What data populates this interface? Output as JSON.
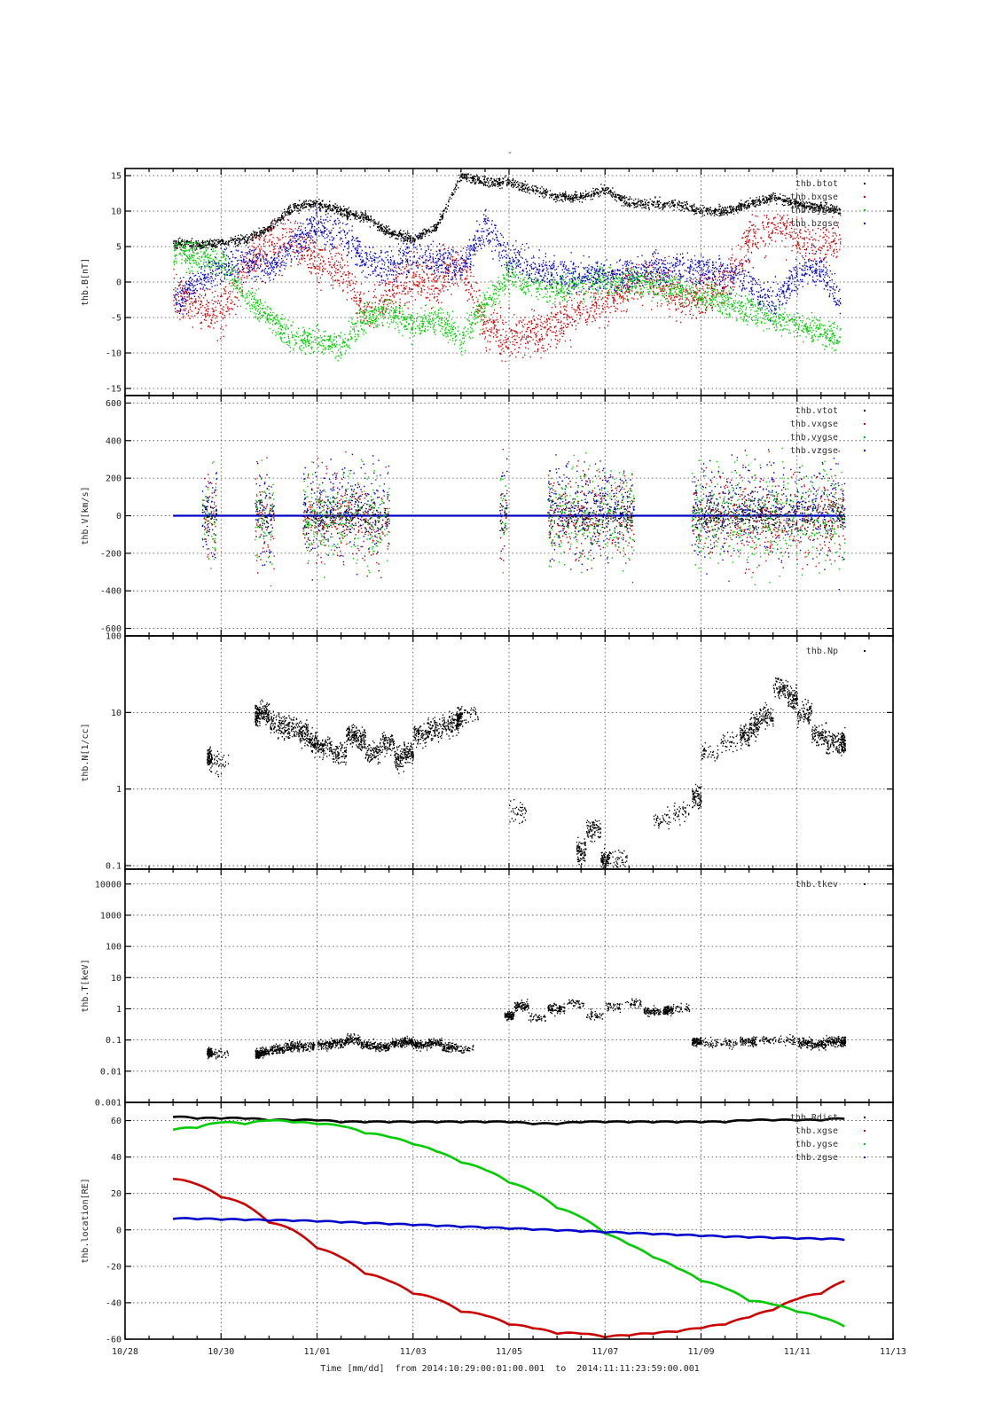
{
  "figure": {
    "title": "-",
    "x_axis": {
      "label": "Time [mm/dd]",
      "from_label": "from",
      "from": "2014:10:29:00:01:00.001",
      "to_label": "to",
      "to": "2014:11:11:23:59:00.001",
      "range": [
        "2014-10-28",
        "2014-11-13"
      ],
      "tick_labels": [
        "10/28",
        "10/30",
        "11/01",
        "11/03",
        "11/05",
        "11/07",
        "11/09",
        "11/11",
        "11/13"
      ],
      "tick_days": [
        0,
        2,
        4,
        6,
        8,
        10,
        12,
        14,
        16
      ],
      "data_start_day": 1.0,
      "data_end_day": 14.99
    },
    "grid": true,
    "colors": {
      "black": "#000000",
      "red": "#cc0000",
      "green": "#00cc00",
      "blue": "#0000cc"
    }
  },
  "chart_data": [
    {
      "type": "scatter",
      "ylabel": "thb.B[nT]",
      "ylim": [
        -16,
        16
      ],
      "yticks": [
        -15,
        -10,
        -5,
        0,
        5,
        10,
        15
      ],
      "ytick_labels": [
        "-15",
        "-10",
        "-5",
        "0",
        "5",
        "10",
        "15"
      ],
      "legend": [
        "thb.btot",
        "thb.bxgse",
        "thb.bygse",
        "thb.bzgse"
      ],
      "legend_placement": "top-right",
      "series": [
        {
          "name": "thb.btot",
          "color": "black",
          "x": [
            1.0,
            1.5,
            2.0,
            2.5,
            3.0,
            3.5,
            4.0,
            4.5,
            5.0,
            5.5,
            6.0,
            6.5,
            7.0,
            7.5,
            8.0,
            8.5,
            9.0,
            9.5,
            10.0,
            10.5,
            11.0,
            11.5,
            12.0,
            12.5,
            13.0,
            13.5,
            14.0,
            14.5,
            14.9
          ],
          "y": [
            5.5,
            5.2,
            5.5,
            6,
            7.5,
            10.5,
            11,
            10,
            9,
            7,
            6,
            8,
            15,
            14,
            14,
            13,
            12,
            12,
            13,
            11,
            11,
            11,
            10,
            10,
            11,
            12,
            11,
            10.5,
            10
          ],
          "spread": 1.2
        },
        {
          "name": "thb.bxgse",
          "color": "red",
          "x": [
            1.0,
            1.5,
            2.0,
            2.5,
            3.0,
            3.5,
            4.0,
            4.5,
            5.0,
            5.5,
            6.0,
            6.5,
            7.0,
            7.5,
            8.0,
            8.5,
            9.0,
            9.5,
            10.0,
            10.5,
            11.0,
            11.5,
            12.0,
            12.5,
            13.0,
            13.5,
            14.0,
            14.5,
            14.9
          ],
          "y": [
            -1,
            -3.5,
            -4.5,
            2,
            5,
            6,
            3,
            2,
            -4,
            -2,
            1,
            0,
            3,
            -6,
            -8,
            -7,
            -6,
            -4,
            -3,
            0,
            0,
            -2,
            -2,
            0,
            6,
            8,
            6,
            5,
            6
          ],
          "spread": 5.5
        },
        {
          "name": "thb.bygse",
          "color": "green",
          "x": [
            1.0,
            1.5,
            2.0,
            2.5,
            3.0,
            3.5,
            4.0,
            4.5,
            5.0,
            5.5,
            6.0,
            6.5,
            7.0,
            7.5,
            8.0,
            8.5,
            9.0,
            9.5,
            10.0,
            10.5,
            11.0,
            11.5,
            12.0,
            12.5,
            13.0,
            13.5,
            14.0,
            14.5,
            14.9
          ],
          "y": [
            4,
            3.5,
            3,
            -2,
            -5,
            -8,
            -8,
            -9,
            -5,
            -4,
            -6,
            -5,
            -8,
            -3,
            1,
            -1,
            -1,
            0,
            0,
            0,
            0,
            -1,
            -2,
            -3,
            -4,
            -5,
            -6,
            -7,
            -8
          ],
          "spread": 3.5
        },
        {
          "name": "thb.bzgse",
          "color": "blue",
          "x": [
            1.0,
            1.5,
            2.0,
            2.5,
            3.0,
            3.5,
            4.0,
            4.5,
            5.0,
            5.5,
            6.0,
            6.5,
            7.0,
            7.5,
            8.0,
            8.5,
            9.0,
            9.5,
            10.0,
            10.5,
            11.0,
            11.5,
            12.0,
            12.5,
            13.0,
            13.5,
            14.0,
            14.5,
            14.9
          ],
          "y": [
            -3,
            0,
            2,
            3,
            2,
            5,
            8,
            7,
            3,
            2,
            4,
            3,
            2,
            8,
            3,
            2,
            1,
            1,
            1,
            1,
            2,
            2,
            2,
            1,
            0,
            -3,
            1,
            2,
            -3
          ],
          "spread": 4.0
        }
      ]
    },
    {
      "type": "scatter",
      "ylabel": "thb.V[km/s]",
      "ylim": [
        -640,
        640
      ],
      "yticks": [
        -600,
        -400,
        -200,
        0,
        200,
        400,
        600
      ],
      "ytick_labels": [
        "-600",
        "-400",
        "-200",
        "0",
        "200",
        "400",
        "600"
      ],
      "legend": [
        "thb.vtot",
        "thb.vxgse",
        "thb.vygse",
        "thb.vzgse"
      ],
      "legend_placement": "top-right",
      "baseline_segments": [
        [
          1.0,
          14.99
        ]
      ],
      "burst_intervals": [
        [
          1.6,
          1.9
        ],
        [
          2.7,
          3.1
        ],
        [
          3.7,
          5.5
        ],
        [
          7.8,
          7.95
        ],
        [
          8.8,
          10.6
        ],
        [
          11.8,
          14.99
        ]
      ],
      "series": [
        {
          "name": "thb.vtot",
          "color": "black"
        },
        {
          "name": "thb.vxgse",
          "color": "red"
        },
        {
          "name": "thb.vygse",
          "color": "green"
        },
        {
          "name": "thb.vzgse",
          "color": "blue"
        }
      ]
    },
    {
      "type": "scatter",
      "ylabel": "thb.N[1/cc]",
      "yscale": "log",
      "ylim": [
        0.09,
        100
      ],
      "yticks": [
        0.1,
        1,
        10,
        100
      ],
      "ytick_labels": [
        "0.1",
        "1",
        "10",
        "100"
      ],
      "legend": [
        "thb.Np"
      ],
      "legend_placement": "top-right",
      "series": [
        {
          "name": "thb.Np",
          "color": "black",
          "x": [
            1.7,
            1.8,
            2.7,
            2.8,
            3.0,
            3.3,
            3.6,
            3.8,
            4.0,
            4.3,
            4.6,
            4.8,
            5.0,
            5.3,
            5.6,
            5.8,
            6.0,
            6.3,
            6.6,
            6.9,
            7.0,
            8.0,
            9.4,
            9.6,
            9.9,
            10.1,
            11.0,
            11.4,
            11.8,
            12.0,
            12.4,
            12.8,
            13.0,
            13.2,
            13.5,
            13.8,
            14.0,
            14.3,
            14.6,
            14.9
          ],
          "y": [
            2.5,
            2.2,
            9,
            10,
            7,
            6.5,
            5.5,
            4,
            3.5,
            3,
            5,
            4.5,
            3,
            4,
            2.5,
            3,
            5,
            6,
            7,
            8,
            9,
            0.5,
            0.15,
            0.3,
            0.12,
            0.12,
            0.4,
            0.5,
            0.8,
            3,
            4,
            5,
            7,
            9,
            20,
            15,
            10,
            5,
            4,
            4
          ]
        }
      ]
    },
    {
      "type": "scatter",
      "ylabel": "thb.T[keV]",
      "yscale": "log",
      "ylim": [
        0.001,
        30000
      ],
      "yticks": [
        0.001,
        0.01,
        0.1,
        1,
        10,
        100,
        1000,
        10000
      ],
      "ytick_labels": [
        "0.001",
        "0.01",
        "0.1",
        "1",
        "10",
        "100",
        "1000",
        "10000"
      ],
      "legend": [
        "thb.tkev"
      ],
      "legend_placement": "top-right",
      "series": [
        {
          "name": "thb.tkev",
          "color": "black",
          "x": [
            1.7,
            1.8,
            2.7,
            2.8,
            3.0,
            3.3,
            3.6,
            4.0,
            4.3,
            4.6,
            4.9,
            5.2,
            5.5,
            5.8,
            6.0,
            6.3,
            6.6,
            6.9,
            7.9,
            8.1,
            8.4,
            8.8,
            9.2,
            9.6,
            10.0,
            10.4,
            10.8,
            11.2,
            11.4,
            11.8,
            12.0,
            12.4,
            12.8,
            13.2,
            13.6,
            14.0,
            14.3,
            14.6,
            14.9
          ],
          "y": [
            0.04,
            0.035,
            0.035,
            0.04,
            0.05,
            0.06,
            0.06,
            0.07,
            0.08,
            0.1,
            0.07,
            0.06,
            0.08,
            0.09,
            0.07,
            0.08,
            0.06,
            0.05,
            0.6,
            1.2,
            0.5,
            1.0,
            1.5,
            0.6,
            1.2,
            1.5,
            0.8,
            0.9,
            1.0,
            0.09,
            0.08,
            0.08,
            0.09,
            0.1,
            0.1,
            0.08,
            0.07,
            0.09,
            0.09
          ]
        }
      ]
    },
    {
      "type": "line",
      "ylabel": "thb.location[RE]",
      "ylim": [
        -60,
        70
      ],
      "yticks": [
        -60,
        -40,
        -20,
        0,
        20,
        40,
        60
      ],
      "ytick_labels": [
        "-60",
        "-40",
        "-20",
        "0",
        "20",
        "40",
        "60"
      ],
      "legend": [
        "thb.Rdist",
        "thb.xgse",
        "thb.ygse",
        "thb.zgse"
      ],
      "legend_placement": "top-right",
      "series": [
        {
          "name": "thb.Rdist",
          "color": "black",
          "x": [
            1.0,
            1.5,
            2.0,
            2.5,
            3.0,
            3.5,
            4.0,
            4.5,
            5.0,
            5.5,
            6.0,
            6.5,
            7.0,
            7.5,
            8.0,
            8.5,
            9.0,
            9.5,
            10.0,
            10.5,
            11.0,
            11.5,
            12.0,
            12.5,
            13.0,
            13.5,
            14.0,
            14.5,
            14.99
          ],
          "y": [
            62,
            61,
            61,
            61,
            60,
            60,
            60,
            59,
            59,
            59,
            59,
            59,
            59,
            59,
            59,
            58,
            58,
            59,
            59,
            59,
            59,
            59,
            59,
            59,
            60,
            60,
            60,
            60,
            61
          ]
        },
        {
          "name": "thb.xgse",
          "color": "red",
          "x": [
            1.0,
            1.5,
            2.0,
            2.5,
            3.0,
            3.5,
            4.0,
            4.5,
            5.0,
            5.5,
            6.0,
            6.5,
            7.0,
            7.5,
            8.0,
            8.5,
            9.0,
            9.5,
            10.0,
            10.5,
            11.0,
            11.5,
            12.0,
            12.5,
            13.0,
            13.5,
            14.0,
            14.5,
            14.99
          ],
          "y": [
            28,
            25,
            18,
            14,
            4,
            0,
            -10,
            -15,
            -24,
            -28,
            -35,
            -38,
            -45,
            -47,
            -52,
            -54,
            -57,
            -57,
            -59,
            -58,
            -57,
            -56,
            -54,
            -52,
            -48,
            -44,
            -38,
            -35,
            -28
          ]
        },
        {
          "name": "thb.ygse",
          "color": "green",
          "x": [
            1.0,
            1.5,
            2.0,
            2.5,
            3.0,
            3.5,
            4.0,
            4.5,
            5.0,
            5.5,
            6.0,
            6.5,
            7.0,
            7.5,
            8.0,
            8.5,
            9.0,
            9.5,
            10.0,
            10.5,
            11.0,
            11.5,
            12.0,
            12.5,
            13.0,
            13.5,
            14.0,
            14.5,
            14.99
          ],
          "y": [
            55,
            56,
            59,
            58,
            60,
            59,
            58,
            57,
            53,
            51,
            47,
            43,
            37,
            33,
            26,
            21,
            12,
            7,
            -2,
            -8,
            -15,
            -21,
            -28,
            -32,
            -39,
            -41,
            -45,
            -48,
            -53
          ]
        },
        {
          "name": "thb.zgse",
          "color": "blue",
          "x": [
            1.0,
            1.5,
            2.0,
            2.5,
            3.0,
            3.5,
            4.0,
            4.5,
            5.0,
            5.5,
            6.0,
            6.5,
            7.0,
            7.5,
            8.0,
            8.5,
            9.0,
            9.5,
            10.0,
            10.5,
            11.0,
            11.5,
            12.0,
            12.5,
            13.0,
            13.5,
            14.0,
            14.5,
            14.99
          ],
          "y": [
            6,
            5.8,
            5.5,
            5.3,
            5,
            4.8,
            4.5,
            4,
            3.5,
            3,
            2.5,
            2,
            1.5,
            1,
            0.5,
            0,
            -0.5,
            -1,
            -1.5,
            -2,
            -2.5,
            -3,
            -3.5,
            -4,
            -4.3,
            -4.6,
            -5,
            -5.2,
            -5.5
          ]
        }
      ]
    }
  ]
}
